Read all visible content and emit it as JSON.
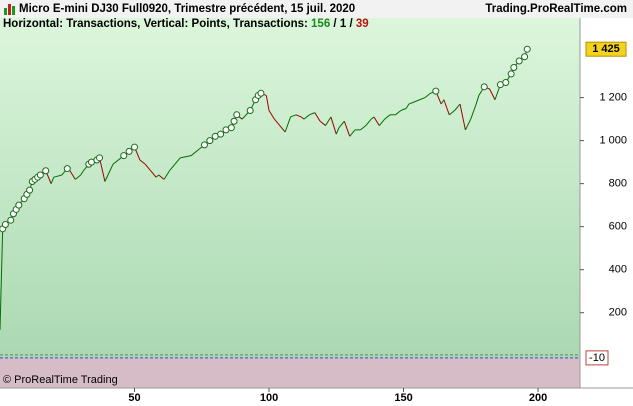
{
  "chart_data": {
    "type": "line",
    "title": "Micro E-mini DJ30 Full0920, Trimestre précédent, 15 juil. 2020",
    "source": "Trading.ProRealTime.com",
    "info_label": "Horizontal: Transactions, Vertical: Points, Transactions:",
    "winning_count": 156,
    "neutral_count": 1,
    "losing_count": 39,
    "count_separator": "/",
    "copyright": "© ProRealTime Trading",
    "x": [
      0,
      1,
      2,
      4,
      5,
      6,
      7,
      9,
      10,
      11,
      12,
      13,
      14,
      15,
      17,
      19,
      20,
      23,
      25,
      26,
      28,
      30,
      31,
      33,
      34,
      36,
      37,
      39,
      42,
      45,
      46,
      48,
      50,
      52,
      54,
      56,
      58,
      59,
      61,
      63,
      65,
      67,
      71,
      74,
      76,
      78,
      80,
      82,
      84,
      86,
      87,
      88,
      90,
      93,
      95,
      96,
      97,
      99,
      100,
      102,
      104,
      106,
      108,
      110,
      112,
      113,
      115,
      117,
      119,
      121,
      123,
      125,
      126,
      128,
      130,
      132,
      134,
      136,
      138,
      139,
      141,
      143,
      145,
      147,
      149,
      151,
      152,
      154,
      156,
      158,
      160,
      162,
      164,
      165,
      167,
      169,
      171,
      173,
      175,
      177,
      178,
      180,
      182,
      184,
      186,
      188,
      190,
      191,
      193,
      195,
      196
    ],
    "series": [
      {
        "name": "Points",
        "color": "#007000",
        "down_color": "#a00000",
        "values": [
          120,
          590,
          610,
          630,
          660,
          680,
          700,
          730,
          750,
          770,
          810,
          820,
          830,
          840,
          860,
          800,
          830,
          840,
          870,
          860,
          820,
          840,
          860,
          890,
          900,
          910,
          920,
          810,
          890,
          920,
          930,
          950,
          970,
          910,
          890,
          860,
          830,
          840,
          820,
          860,
          890,
          920,
          930,
          960,
          980,
          1000,
          1020,
          1030,
          1050,
          1060,
          1090,
          1120,
          1100,
          1140,
          1190,
          1210,
          1220,
          1210,
          1140,
          1100,
          1070,
          1040,
          1110,
          1120,
          1110,
          1100,
          1120,
          1130,
          1090,
          1070,
          1110,
          1030,
          1060,
          1090,
          1020,
          1050,
          1050,
          1070,
          1100,
          1110,
          1070,
          1100,
          1120,
          1120,
          1140,
          1150,
          1170,
          1180,
          1190,
          1200,
          1220,
          1230,
          1170,
          1190,
          1120,
          1140,
          1170,
          1050,
          1100,
          1170,
          1210,
          1250,
          1240,
          1190,
          1260,
          1270,
          1310,
          1340,
          1370,
          1390,
          1425
        ]
      }
    ],
    "last_value": {
      "value": 1425,
      "label": "1 425"
    },
    "reference_line": -10,
    "xlim": [
      0,
      215.6
    ],
    "xticks": [
      50,
      100,
      150,
      200
    ],
    "ylim": [
      -150,
      1570
    ],
    "yticks": [
      200,
      400,
      600,
      800,
      {
        "value": 1000,
        "label": "1 000"
      },
      {
        "value": 1200,
        "label": "1 200"
      }
    ],
    "grid": false
  }
}
